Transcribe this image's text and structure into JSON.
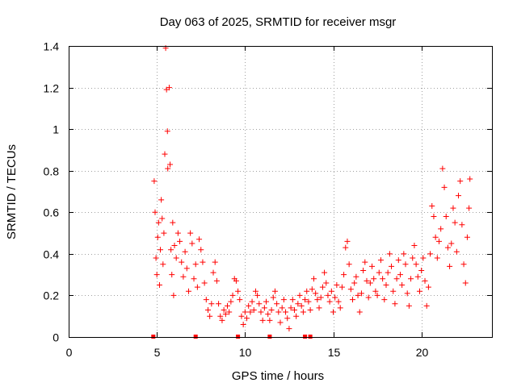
{
  "chart_data": {
    "type": "scatter",
    "title": "Day 063 of 2025, SRMTID for receiver msgr",
    "xlabel": "GPS time / hours",
    "ylabel": "SRMTID / TECUs",
    "xlim": [
      0,
      24
    ],
    "ylim": [
      0,
      1.4
    ],
    "grid": true,
    "marker": "+",
    "series_color": "#ff0000",
    "x_ticks": [
      {
        "value": 0,
        "label": "0"
      },
      {
        "value": 5,
        "label": "5"
      },
      {
        "value": 10,
        "label": "10"
      },
      {
        "value": 15,
        "label": "15"
      },
      {
        "value": 20,
        "label": "20"
      }
    ],
    "y_ticks": [
      {
        "value": 0,
        "label": "0"
      },
      {
        "value": 0.2,
        "label": "0.2"
      },
      {
        "value": 0.4,
        "label": "0.4"
      },
      {
        "value": 0.6,
        "label": "0.6"
      },
      {
        "value": 0.8,
        "label": "0.8"
      },
      {
        "value": 1.0,
        "label": "1"
      },
      {
        "value": 1.2,
        "label": "1.2"
      },
      {
        "value": 1.4,
        "label": "1.4"
      }
    ],
    "zero_markers_x": [
      4.8,
      7.2,
      9.6,
      11.4,
      13.4,
      13.7
    ],
    "series": [
      {
        "name": "SRMTID",
        "points": [
          [
            4.85,
            0.75
          ],
          [
            4.9,
            0.6
          ],
          [
            4.95,
            0.38
          ],
          [
            5.0,
            0.3
          ],
          [
            5.05,
            0.48
          ],
          [
            5.1,
            0.55
          ],
          [
            5.15,
            0.25
          ],
          [
            5.2,
            0.42
          ],
          [
            5.25,
            0.66
          ],
          [
            5.3,
            0.57
          ],
          [
            5.35,
            0.35
          ],
          [
            5.4,
            0.5
          ],
          [
            5.45,
            0.88
          ],
          [
            5.5,
            1.39
          ],
          [
            5.55,
            1.19
          ],
          [
            5.6,
            0.99
          ],
          [
            5.62,
            0.81
          ],
          [
            5.7,
            1.2
          ],
          [
            5.75,
            0.83
          ],
          [
            5.8,
            0.42
          ],
          [
            5.85,
            0.3
          ],
          [
            5.9,
            0.55
          ],
          [
            5.95,
            0.2
          ],
          [
            6.0,
            0.44
          ],
          [
            6.1,
            0.38
          ],
          [
            6.2,
            0.5
          ],
          [
            6.3,
            0.46
          ],
          [
            6.4,
            0.36
          ],
          [
            6.5,
            0.29
          ],
          [
            6.6,
            0.41
          ],
          [
            6.7,
            0.33
          ],
          [
            6.8,
            0.22
          ],
          [
            6.9,
            0.5
          ],
          [
            7.0,
            0.45
          ],
          [
            7.1,
            0.28
          ],
          [
            7.2,
            0.35
          ],
          [
            7.3,
            0.24
          ],
          [
            7.4,
            0.47
          ],
          [
            7.5,
            0.42
          ],
          [
            7.6,
            0.36
          ],
          [
            7.7,
            0.26
          ],
          [
            7.8,
            0.18
          ],
          [
            7.9,
            0.13
          ],
          [
            8.0,
            0.1
          ],
          [
            8.1,
            0.16
          ],
          [
            8.2,
            0.31
          ],
          [
            8.3,
            0.36
          ],
          [
            8.4,
            0.27
          ],
          [
            8.5,
            0.16
          ],
          [
            8.6,
            0.1
          ],
          [
            8.7,
            0.08
          ],
          [
            8.8,
            0.13
          ],
          [
            8.9,
            0.11
          ],
          [
            9.0,
            0.15
          ],
          [
            9.1,
            0.12
          ],
          [
            9.2,
            0.17
          ],
          [
            9.3,
            0.2
          ],
          [
            9.4,
            0.28
          ],
          [
            9.5,
            0.27
          ],
          [
            9.6,
            0.22
          ],
          [
            9.7,
            0.18
          ],
          [
            9.8,
            0.1
          ],
          [
            9.9,
            0.06
          ],
          [
            10.0,
            0.12
          ],
          [
            10.1,
            0.09
          ],
          [
            10.2,
            0.15
          ],
          [
            10.3,
            0.12
          ],
          [
            10.4,
            0.17
          ],
          [
            10.5,
            0.13
          ],
          [
            10.6,
            0.22
          ],
          [
            10.7,
            0.2
          ],
          [
            10.8,
            0.16
          ],
          [
            10.9,
            0.12
          ],
          [
            11.0,
            0.08
          ],
          [
            11.1,
            0.14
          ],
          [
            11.2,
            0.17
          ],
          [
            11.3,
            0.11
          ],
          [
            11.4,
            0.08
          ],
          [
            11.5,
            0.13
          ],
          [
            11.6,
            0.19
          ],
          [
            11.7,
            0.22
          ],
          [
            11.8,
            0.16
          ],
          [
            11.9,
            0.12
          ],
          [
            12.0,
            0.07
          ],
          [
            12.1,
            0.14
          ],
          [
            12.2,
            0.18
          ],
          [
            12.3,
            0.12
          ],
          [
            12.4,
            0.09
          ],
          [
            12.5,
            0.04
          ],
          [
            12.6,
            0.14
          ],
          [
            12.7,
            0.18
          ],
          [
            12.8,
            0.13
          ],
          [
            12.9,
            0.1
          ],
          [
            13.0,
            0.16
          ],
          [
            13.1,
            0.2
          ],
          [
            13.2,
            0.15
          ],
          [
            13.3,
            0.12
          ],
          [
            13.4,
            0.18
          ],
          [
            13.5,
            0.22
          ],
          [
            13.6,
            0.17
          ],
          [
            13.7,
            0.13
          ],
          [
            13.8,
            0.23
          ],
          [
            13.9,
            0.28
          ],
          [
            14.0,
            0.21
          ],
          [
            14.1,
            0.18
          ],
          [
            14.2,
            0.14
          ],
          [
            14.3,
            0.19
          ],
          [
            14.4,
            0.24
          ],
          [
            14.5,
            0.31
          ],
          [
            14.6,
            0.26
          ],
          [
            14.7,
            0.2
          ],
          [
            14.8,
            0.17
          ],
          [
            14.9,
            0.22
          ],
          [
            15.0,
            0.12
          ],
          [
            15.1,
            0.19
          ],
          [
            15.2,
            0.25
          ],
          [
            15.3,
            0.17
          ],
          [
            15.4,
            0.14
          ],
          [
            15.5,
            0.24
          ],
          [
            15.6,
            0.3
          ],
          [
            15.7,
            0.43
          ],
          [
            15.8,
            0.46
          ],
          [
            15.9,
            0.35
          ],
          [
            16.0,
            0.23
          ],
          [
            16.1,
            0.18
          ],
          [
            16.2,
            0.26
          ],
          [
            16.3,
            0.29
          ],
          [
            16.4,
            0.2
          ],
          [
            16.5,
            0.12
          ],
          [
            16.6,
            0.21
          ],
          [
            16.7,
            0.32
          ],
          [
            16.8,
            0.36
          ],
          [
            16.9,
            0.27
          ],
          [
            17.0,
            0.19
          ],
          [
            17.1,
            0.26
          ],
          [
            17.2,
            0.34
          ],
          [
            17.3,
            0.28
          ],
          [
            17.4,
            0.22
          ],
          [
            17.5,
            0.2
          ],
          [
            17.6,
            0.31
          ],
          [
            17.7,
            0.37
          ],
          [
            17.8,
            0.28
          ],
          [
            17.9,
            0.18
          ],
          [
            18.0,
            0.25
          ],
          [
            18.1,
            0.31
          ],
          [
            18.2,
            0.4
          ],
          [
            18.3,
            0.34
          ],
          [
            18.4,
            0.22
          ],
          [
            18.5,
            0.16
          ],
          [
            18.6,
            0.28
          ],
          [
            18.7,
            0.37
          ],
          [
            18.8,
            0.3
          ],
          [
            18.9,
            0.25
          ],
          [
            19.0,
            0.4
          ],
          [
            19.1,
            0.35
          ],
          [
            19.2,
            0.21
          ],
          [
            19.3,
            0.15
          ],
          [
            19.4,
            0.28
          ],
          [
            19.5,
            0.38
          ],
          [
            19.6,
            0.44
          ],
          [
            19.7,
            0.35
          ],
          [
            19.8,
            0.29
          ],
          [
            19.9,
            0.22
          ],
          [
            20.0,
            0.32
          ],
          [
            20.1,
            0.38
          ],
          [
            20.2,
            0.27
          ],
          [
            20.3,
            0.15
          ],
          [
            20.4,
            0.24
          ],
          [
            20.5,
            0.4
          ],
          [
            20.6,
            0.63
          ],
          [
            20.7,
            0.58
          ],
          [
            20.8,
            0.48
          ],
          [
            20.9,
            0.38
          ],
          [
            21.0,
            0.46
          ],
          [
            21.1,
            0.52
          ],
          [
            21.2,
            0.81
          ],
          [
            21.3,
            0.72
          ],
          [
            21.4,
            0.58
          ],
          [
            21.5,
            0.43
          ],
          [
            21.6,
            0.34
          ],
          [
            21.7,
            0.45
          ],
          [
            21.8,
            0.62
          ],
          [
            21.9,
            0.55
          ],
          [
            22.0,
            0.41
          ],
          [
            22.1,
            0.68
          ],
          [
            22.2,
            0.75
          ],
          [
            22.3,
            0.54
          ],
          [
            22.4,
            0.35
          ],
          [
            22.5,
            0.26
          ],
          [
            22.6,
            0.48
          ],
          [
            22.7,
            0.62
          ],
          [
            22.75,
            0.76
          ]
        ]
      }
    ]
  }
}
